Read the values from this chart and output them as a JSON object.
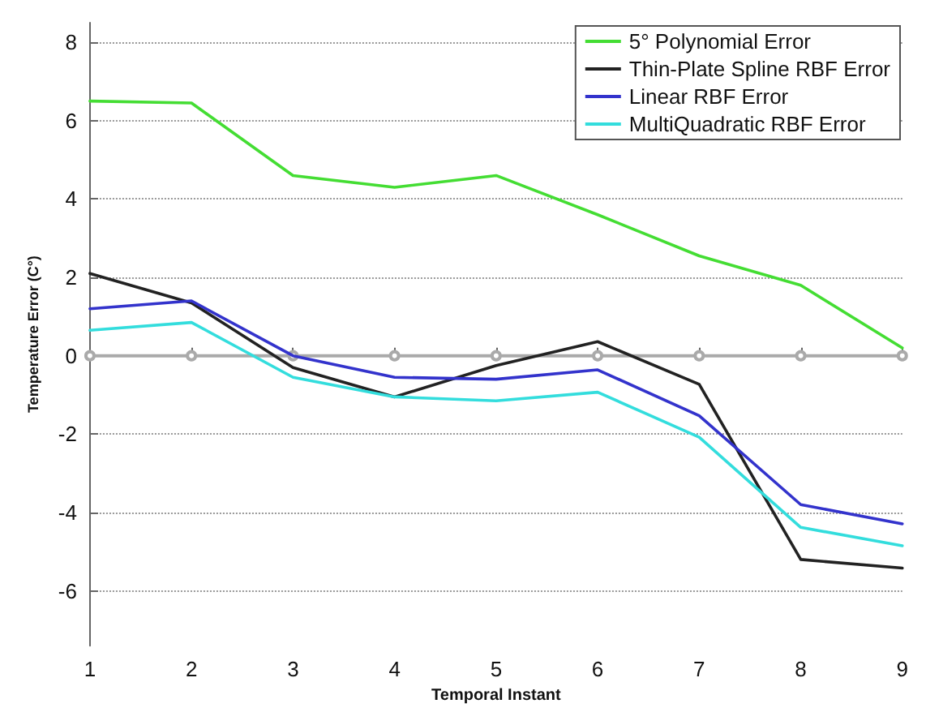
{
  "chart_data": {
    "type": "line",
    "xlabel": "Temporal Instant",
    "ylabel": "Temperature Error (C°)",
    "x": [
      1,
      2,
      3,
      4,
      5,
      6,
      7,
      8,
      9
    ],
    "xlim": [
      1,
      9
    ],
    "xticks": [
      1,
      2,
      3,
      4,
      5,
      6,
      7,
      8,
      9
    ],
    "ylim": [
      -7.4,
      8.5
    ],
    "yticks": [
      -6,
      -4,
      -2,
      0,
      2,
      4,
      6,
      8
    ],
    "grid": "y",
    "legend": "top right",
    "marker": "none",
    "line_style": "solid",
    "series": [
      {
        "name": "5° Polynomial Error",
        "color": "#44dd33",
        "values": [
          6.5,
          6.45,
          4.6,
          4.3,
          4.6,
          3.6,
          2.55,
          1.8,
          0.2
        ]
      },
      {
        "name": "Thin-Plate Spline RBF Error",
        "color": "#222222",
        "values": [
          2.1,
          1.35,
          -0.3,
          -1.05,
          -0.25,
          0.36,
          -0.73,
          -5.2,
          -5.42
        ]
      },
      {
        "name": "Linear RBF Error",
        "color": "#3333cc",
        "values": [
          1.2,
          1.4,
          0.0,
          -0.55,
          -0.6,
          -0.36,
          -1.53,
          -3.8,
          -4.29
        ]
      },
      {
        "name": "MultiQuadratic RBF Error",
        "color": "#33dddd",
        "values": [
          0.65,
          0.85,
          -0.55,
          -1.05,
          -1.15,
          -0.93,
          -2.08,
          -4.38,
          -4.85
        ]
      },
      {
        "color": "#aaaaaa",
        "marker": "circle",
        "values": [
          0,
          0,
          0,
          0,
          0,
          0,
          0,
          0,
          0
        ]
      }
    ]
  }
}
